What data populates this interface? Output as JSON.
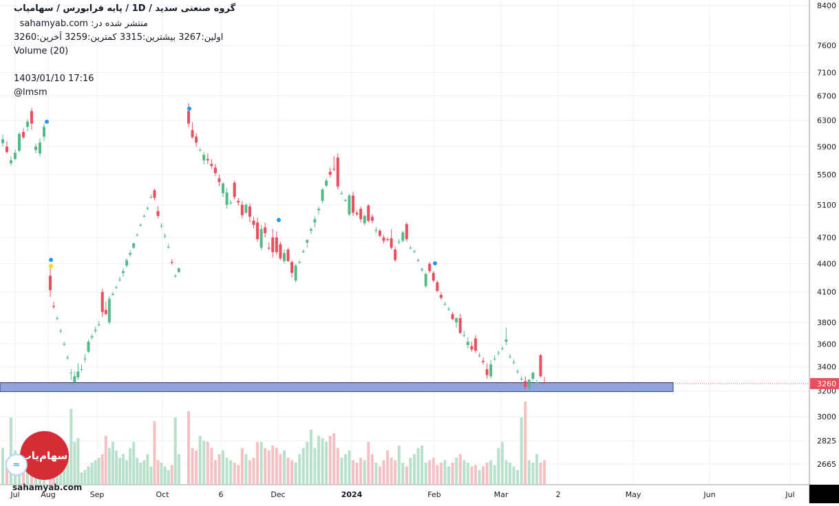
{
  "header": {
    "title": "گروه صنعتی سدید /  1D  /  پایه فرابورس / سهامیاب",
    "published": "منتشر شده در: sahamyab.com",
    "ohlc": "اولین:3267  بیشترین:3315  کمترین:3259  آخرین:3260",
    "volume_label": "Volume (20)",
    "timestamp": "1403/01/10 17:16",
    "author": "@lmsm"
  },
  "watermark": "sahamyab.com",
  "logo_text": "سهام‌یاب",
  "colors": {
    "up": "#53b987",
    "down": "#eb4d5c",
    "up_volume": "#b7e1cb",
    "down_volume": "#f5c0c3",
    "zone_fill": "#8fa4dc",
    "zone_border": "#2d3f8c",
    "price_label_bg": "#eb4d5c",
    "grid": "#ecf0f3",
    "marker_blue": "#2196f3",
    "marker_yellow": "#ffd400"
  },
  "chart_data": {
    "type": "candlestick",
    "y_scale": "log",
    "ylim": [
      2500,
      8600
    ],
    "y_ticks": [
      2665,
      2825,
      3000,
      3200,
      3400,
      3600,
      3800,
      4100,
      4400,
      4700,
      5100,
      5500,
      5900,
      6300,
      6700,
      7100,
      7600,
      8400
    ],
    "x_ticks": [
      "Jul",
      "Aug",
      "Sep",
      "Oct",
      "6",
      "Dec",
      "2024",
      "Feb",
      "Mar",
      "2",
      "May",
      "Jun",
      "Jul"
    ],
    "last_price": "3260",
    "support_zone": [
      3195,
      3268
    ],
    "candles": [
      [
        5950,
        6080,
        5900,
        6010
      ],
      [
        5900,
        5980,
        5800,
        5820
      ],
      [
        5660,
        5760,
        5620,
        5700
      ],
      [
        5720,
        5860,
        5700,
        5810
      ],
      [
        5840,
        6120,
        5820,
        6090
      ],
      [
        6120,
        6180,
        6010,
        6040
      ],
      [
        6200,
        6320,
        6130,
        6280
      ],
      [
        6450,
        6500,
        6150,
        6250
      ],
      [
        5850,
        5950,
        5800,
        5900
      ],
      [
        5800,
        6020,
        5760,
        5960
      ],
      [
        6050,
        6250,
        5980,
        6200
      ],
      [
        4270,
        4380,
        4050,
        4120
      ],
      [
        3960,
        4000,
        3930,
        3950
      ],
      [
        3840,
        3860,
        3820,
        3840
      ],
      [
        3720,
        3740,
        3700,
        3720
      ],
      [
        3600,
        3620,
        3580,
        3600
      ],
      [
        3480,
        3500,
        3460,
        3480
      ],
      [
        3350,
        3380,
        3290,
        3350
      ],
      [
        3270,
        3360,
        3250,
        3320
      ],
      [
        3310,
        3430,
        3290,
        3360
      ],
      [
        3380,
        3420,
        3360,
        3380
      ],
      [
        3470,
        3510,
        3440,
        3470
      ],
      [
        3530,
        3640,
        3520,
        3620
      ],
      [
        3660,
        3690,
        3640,
        3670
      ],
      [
        3720,
        3760,
        3700,
        3730
      ],
      [
        3780,
        3810,
        3760,
        3780
      ],
      [
        4100,
        4130,
        3850,
        3900
      ],
      [
        3920,
        4000,
        3870,
        3880
      ],
      [
        3800,
        4060,
        3780,
        4030
      ],
      [
        4070,
        4100,
        4060,
        4080
      ],
      [
        4150,
        4170,
        4130,
        4150
      ],
      [
        4230,
        4260,
        4210,
        4230
      ],
      [
        4300,
        4350,
        4260,
        4320
      ],
      [
        4380,
        4460,
        4360,
        4440
      ],
      [
        4500,
        4550,
        4480,
        4520
      ],
      [
        4580,
        4640,
        4570,
        4630
      ],
      [
        4730,
        4750,
        4710,
        4730
      ],
      [
        4850,
        4870,
        4830,
        4850
      ],
      [
        4960,
        4980,
        4940,
        4960
      ],
      [
        5050,
        5080,
        5030,
        5060
      ],
      [
        5200,
        5230,
        5180,
        5200
      ],
      [
        5290,
        5310,
        5160,
        5190
      ],
      [
        5020,
        5080,
        4930,
        4960
      ],
      [
        4840,
        4870,
        4810,
        4840
      ],
      [
        4720,
        4750,
        4690,
        4720
      ],
      [
        4590,
        4620,
        4570,
        4590
      ],
      [
        4420,
        4450,
        4390,
        4410
      ],
      [
        4270,
        4290,
        4250,
        4270
      ],
      [
        4310,
        4360,
        4300,
        4350
      ],
      [
        6450,
        6580,
        6200,
        6250
      ],
      [
        6150,
        6270,
        6020,
        6040
      ],
      [
        6050,
        6100,
        5900,
        5960
      ],
      [
        5850,
        5880,
        5830,
        5850
      ],
      [
        5700,
        5820,
        5640,
        5780
      ],
      [
        5720,
        5800,
        5650,
        5700
      ],
      [
        5650,
        5720,
        5580,
        5620
      ],
      [
        5600,
        5650,
        5480,
        5520
      ],
      [
        5450,
        5500,
        5350,
        5400
      ],
      [
        5250,
        5400,
        5200,
        5380
      ],
      [
        5100,
        5320,
        5050,
        5260
      ],
      [
        5120,
        5160,
        5100,
        5130
      ],
      [
        5390,
        5420,
        5170,
        5200
      ],
      [
        5150,
        5190,
        5090,
        5130
      ],
      [
        5100,
        5150,
        4930,
        4970
      ],
      [
        5000,
        5120,
        4980,
        5100
      ],
      [
        5080,
        5120,
        4880,
        4950
      ],
      [
        4900,
        4950,
        4810,
        4850
      ],
      [
        4880,
        4940,
        4650,
        4680
      ],
      [
        4580,
        4850,
        4550,
        4800
      ],
      [
        4820,
        4880,
        4700,
        4750
      ],
      [
        4580,
        4640,
        4550,
        4570
      ],
      [
        4700,
        4800,
        4470,
        4530
      ],
      [
        4700,
        4770,
        4500,
        4530
      ],
      [
        4620,
        4650,
        4440,
        4460
      ],
      [
        4430,
        4560,
        4400,
        4520
      ],
      [
        4560,
        4580,
        4420,
        4430
      ],
      [
        4420,
        4440,
        4250,
        4300
      ],
      [
        4220,
        4400,
        4200,
        4380
      ],
      [
        4420,
        4440,
        4400,
        4420
      ],
      [
        4530,
        4560,
        4520,
        4540
      ],
      [
        4640,
        4680,
        4580,
        4670
      ],
      [
        4780,
        4820,
        4740,
        4800
      ],
      [
        4880,
        4950,
        4820,
        4920
      ],
      [
        5030,
        5080,
        4980,
        5050
      ],
      [
        5150,
        5320,
        5120,
        5300
      ],
      [
        5350,
        5450,
        5330,
        5420
      ],
      [
        5540,
        5600,
        5460,
        5500
      ],
      [
        5580,
        5760,
        5550,
        5570
      ],
      [
        5740,
        5800,
        5300,
        5340
      ],
      [
        5250,
        5280,
        5230,
        5250
      ],
      [
        5160,
        5180,
        5140,
        5160
      ],
      [
        4980,
        5240,
        4960,
        5220
      ],
      [
        5220,
        5270,
        4960,
        5000
      ],
      [
        5000,
        5030,
        4960,
        4980
      ],
      [
        5050,
        5080,
        4880,
        4920
      ],
      [
        4870,
        4980,
        4840,
        4960
      ],
      [
        5090,
        5110,
        4880,
        4900
      ],
      [
        4950,
        4980,
        4870,
        4900
      ],
      [
        4780,
        4820,
        4750,
        4790
      ],
      [
        4780,
        4800,
        4700,
        4720
      ],
      [
        4700,
        4730,
        4630,
        4660
      ],
      [
        4680,
        4700,
        4650,
        4670
      ],
      [
        4690,
        4800,
        4560,
        4580
      ],
      [
        4560,
        4590,
        4420,
        4440
      ],
      [
        4650,
        4680,
        4620,
        4650
      ],
      [
        4660,
        4780,
        4640,
        4760
      ],
      [
        4860,
        4880,
        4650,
        4680
      ],
      [
        4580,
        4600,
        4560,
        4580
      ],
      [
        4540,
        4560,
        4520,
        4540
      ],
      [
        4440,
        4460,
        4420,
        4440
      ],
      [
        4330,
        4360,
        4310,
        4340
      ],
      [
        4160,
        4300,
        4140,
        4290
      ],
      [
        4400,
        4420,
        4300,
        4320
      ],
      [
        4300,
        4320,
        4200,
        4220
      ],
      [
        4200,
        4220,
        4100,
        4110
      ],
      [
        4070,
        4100,
        4020,
        4040
      ],
      [
        3980,
        4000,
        3960,
        3980
      ],
      [
        3930,
        3950,
        3910,
        3930
      ],
      [
        3880,
        3900,
        3820,
        3830
      ],
      [
        3800,
        3850,
        3750,
        3840
      ],
      [
        3840,
        3880,
        3690,
        3700
      ],
      [
        3680,
        3720,
        3660,
        3680
      ],
      [
        3590,
        3660,
        3560,
        3620
      ],
      [
        3580,
        3620,
        3530,
        3550
      ],
      [
        3650,
        3680,
        3520,
        3540
      ],
      [
        3500,
        3520,
        3480,
        3500
      ],
      [
        3450,
        3480,
        3420,
        3440
      ],
      [
        3380,
        3430,
        3300,
        3330
      ],
      [
        3320,
        3460,
        3300,
        3420
      ],
      [
        3470,
        3500,
        3450,
        3470
      ],
      [
        3520,
        3540,
        3500,
        3520
      ],
      [
        3560,
        3580,
        3540,
        3560
      ],
      [
        3620,
        3750,
        3590,
        3640
      ],
      [
        3490,
        3510,
        3470,
        3490
      ],
      [
        3440,
        3460,
        3420,
        3440
      ],
      [
        3360,
        3380,
        3340,
        3360
      ],
      [
        3300,
        3320,
        3280,
        3300
      ],
      [
        3280,
        3320,
        3210,
        3230
      ],
      [
        3230,
        3300,
        3200,
        3290
      ],
      [
        3300,
        3360,
        3280,
        3350
      ],
      [
        3270,
        3290,
        3250,
        3270
      ],
      [
        3500,
        3510,
        3310,
        3320
      ],
      [
        3267,
        3315,
        3259,
        3260
      ]
    ],
    "volumes": [
      0.3,
      0.2,
      0.55,
      0.28,
      0.25,
      0.18,
      0.15,
      0.12,
      0.2,
      0.16,
      0.22,
      0.2,
      0.18,
      0.1,
      0.12,
      0.15,
      0.2,
      0.62,
      0.35,
      0.38,
      0.1,
      0.12,
      0.15,
      0.18,
      0.2,
      0.22,
      0.25,
      0.4,
      0.3,
      0.35,
      0.28,
      0.22,
      0.25,
      0.2,
      0.3,
      0.35,
      0.22,
      0.18,
      0.2,
      0.25,
      0.15,
      0.52,
      0.2,
      0.18,
      0.15,
      0.12,
      0.16,
      0.55,
      0.25,
      0.6,
      0.3,
      0.28,
      0.4,
      0.36,
      0.35,
      0.3,
      0.2,
      0.25,
      0.28,
      0.22,
      0.2,
      0.18,
      0.16,
      0.3,
      0.25,
      0.2,
      0.22,
      0.35,
      0.35,
      0.3,
      0.28,
      0.32,
      0.3,
      0.25,
      0.28,
      0.22,
      0.2,
      0.18,
      0.25,
      0.3,
      0.35,
      0.45,
      0.3,
      0.4,
      0.38,
      0.35,
      0.4,
      0.42,
      0.3,
      0.22,
      0.25,
      0.28,
      0.2,
      0.18,
      0.22,
      0.2,
      0.35,
      0.25,
      0.18,
      0.15,
      0.2,
      0.28,
      0.22,
      0.2,
      0.32,
      0.18,
      0.15,
      0.22,
      0.25,
      0.3,
      0.32,
      0.18,
      0.2,
      0.22,
      0.16,
      0.18,
      0.2,
      0.15,
      0.18,
      0.22,
      0.25,
      0.2,
      0.18,
      0.15,
      0.16,
      0.12,
      0.15,
      0.18,
      0.2,
      0.16,
      0.3,
      0.35,
      0.2,
      0.18,
      0.15,
      0.12,
      0.55,
      0.68,
      0.2,
      0.18,
      0.25,
      0.18,
      0.2,
      0.25
    ]
  }
}
